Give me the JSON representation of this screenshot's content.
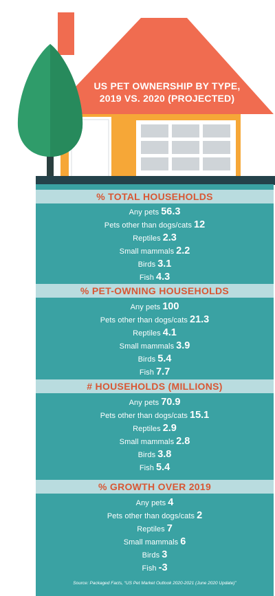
{
  "title_lines": [
    "US PET OWNERSHIP BY TYPE,",
    "2019 VS. 2020 (PROJECTED)"
  ],
  "source": "Source: Packaged Facts, “US Pet Market Outlook 2020-2021 (June 2020 Update)”",
  "colors": {
    "roof": "#f06c50",
    "wall": "#f6a737",
    "tree": "#2f9c6a",
    "panel": "#3aa2a3",
    "band": "#b9dcdf",
    "heading": "#d85734",
    "base": "#24424a"
  },
  "chart_data": {
    "type": "table",
    "sections": [
      {
        "heading": "% TOTAL HOUSEHOLDS",
        "rows": [
          {
            "label": "Any pets",
            "value": "56.3"
          },
          {
            "label": "Pets other than dogs/cats",
            "value": "12"
          },
          {
            "label": "Reptiles",
            "value": "2.3"
          },
          {
            "label": "Small mammals",
            "value": "2.2"
          },
          {
            "label": "Birds",
            "value": "3.1"
          },
          {
            "label": "Fish",
            "value": "4.3"
          }
        ]
      },
      {
        "heading": "% PET-OWNING HOUSEHOLDS",
        "rows": [
          {
            "label": "Any pets",
            "value": "100"
          },
          {
            "label": "Pets other than dogs/cats",
            "value": "21.3"
          },
          {
            "label": "Reptiles",
            "value": "4.1"
          },
          {
            "label": "Small mammals",
            "value": "3.9"
          },
          {
            "label": "Birds",
            "value": "5.4"
          },
          {
            "label": "Fish",
            "value": "7.7"
          }
        ]
      },
      {
        "heading": "# HOUSEHOLDS (MILLIONS)",
        "rows": [
          {
            "label": "Any pets",
            "value": "70.9"
          },
          {
            "label": "Pets other than dogs/cats",
            "value": "15.1"
          },
          {
            "label": "Reptiles",
            "value": "2.9"
          },
          {
            "label": "Small mammals",
            "value": "2.8"
          },
          {
            "label": "Birds",
            "value": "3.8"
          },
          {
            "label": "Fish",
            "value": "5.4"
          }
        ]
      },
      {
        "heading": "% GROWTH OVER 2019",
        "rows": [
          {
            "label": "Any pets",
            "value": "4"
          },
          {
            "label": "Pets other than dogs/cats",
            "value": "2"
          },
          {
            "label": "Reptiles",
            "value": "7"
          },
          {
            "label": "Small mammals",
            "value": "6"
          },
          {
            "label": "Birds",
            "value": "3"
          },
          {
            "label": "Fish",
            "value": "-3"
          }
        ]
      }
    ]
  }
}
